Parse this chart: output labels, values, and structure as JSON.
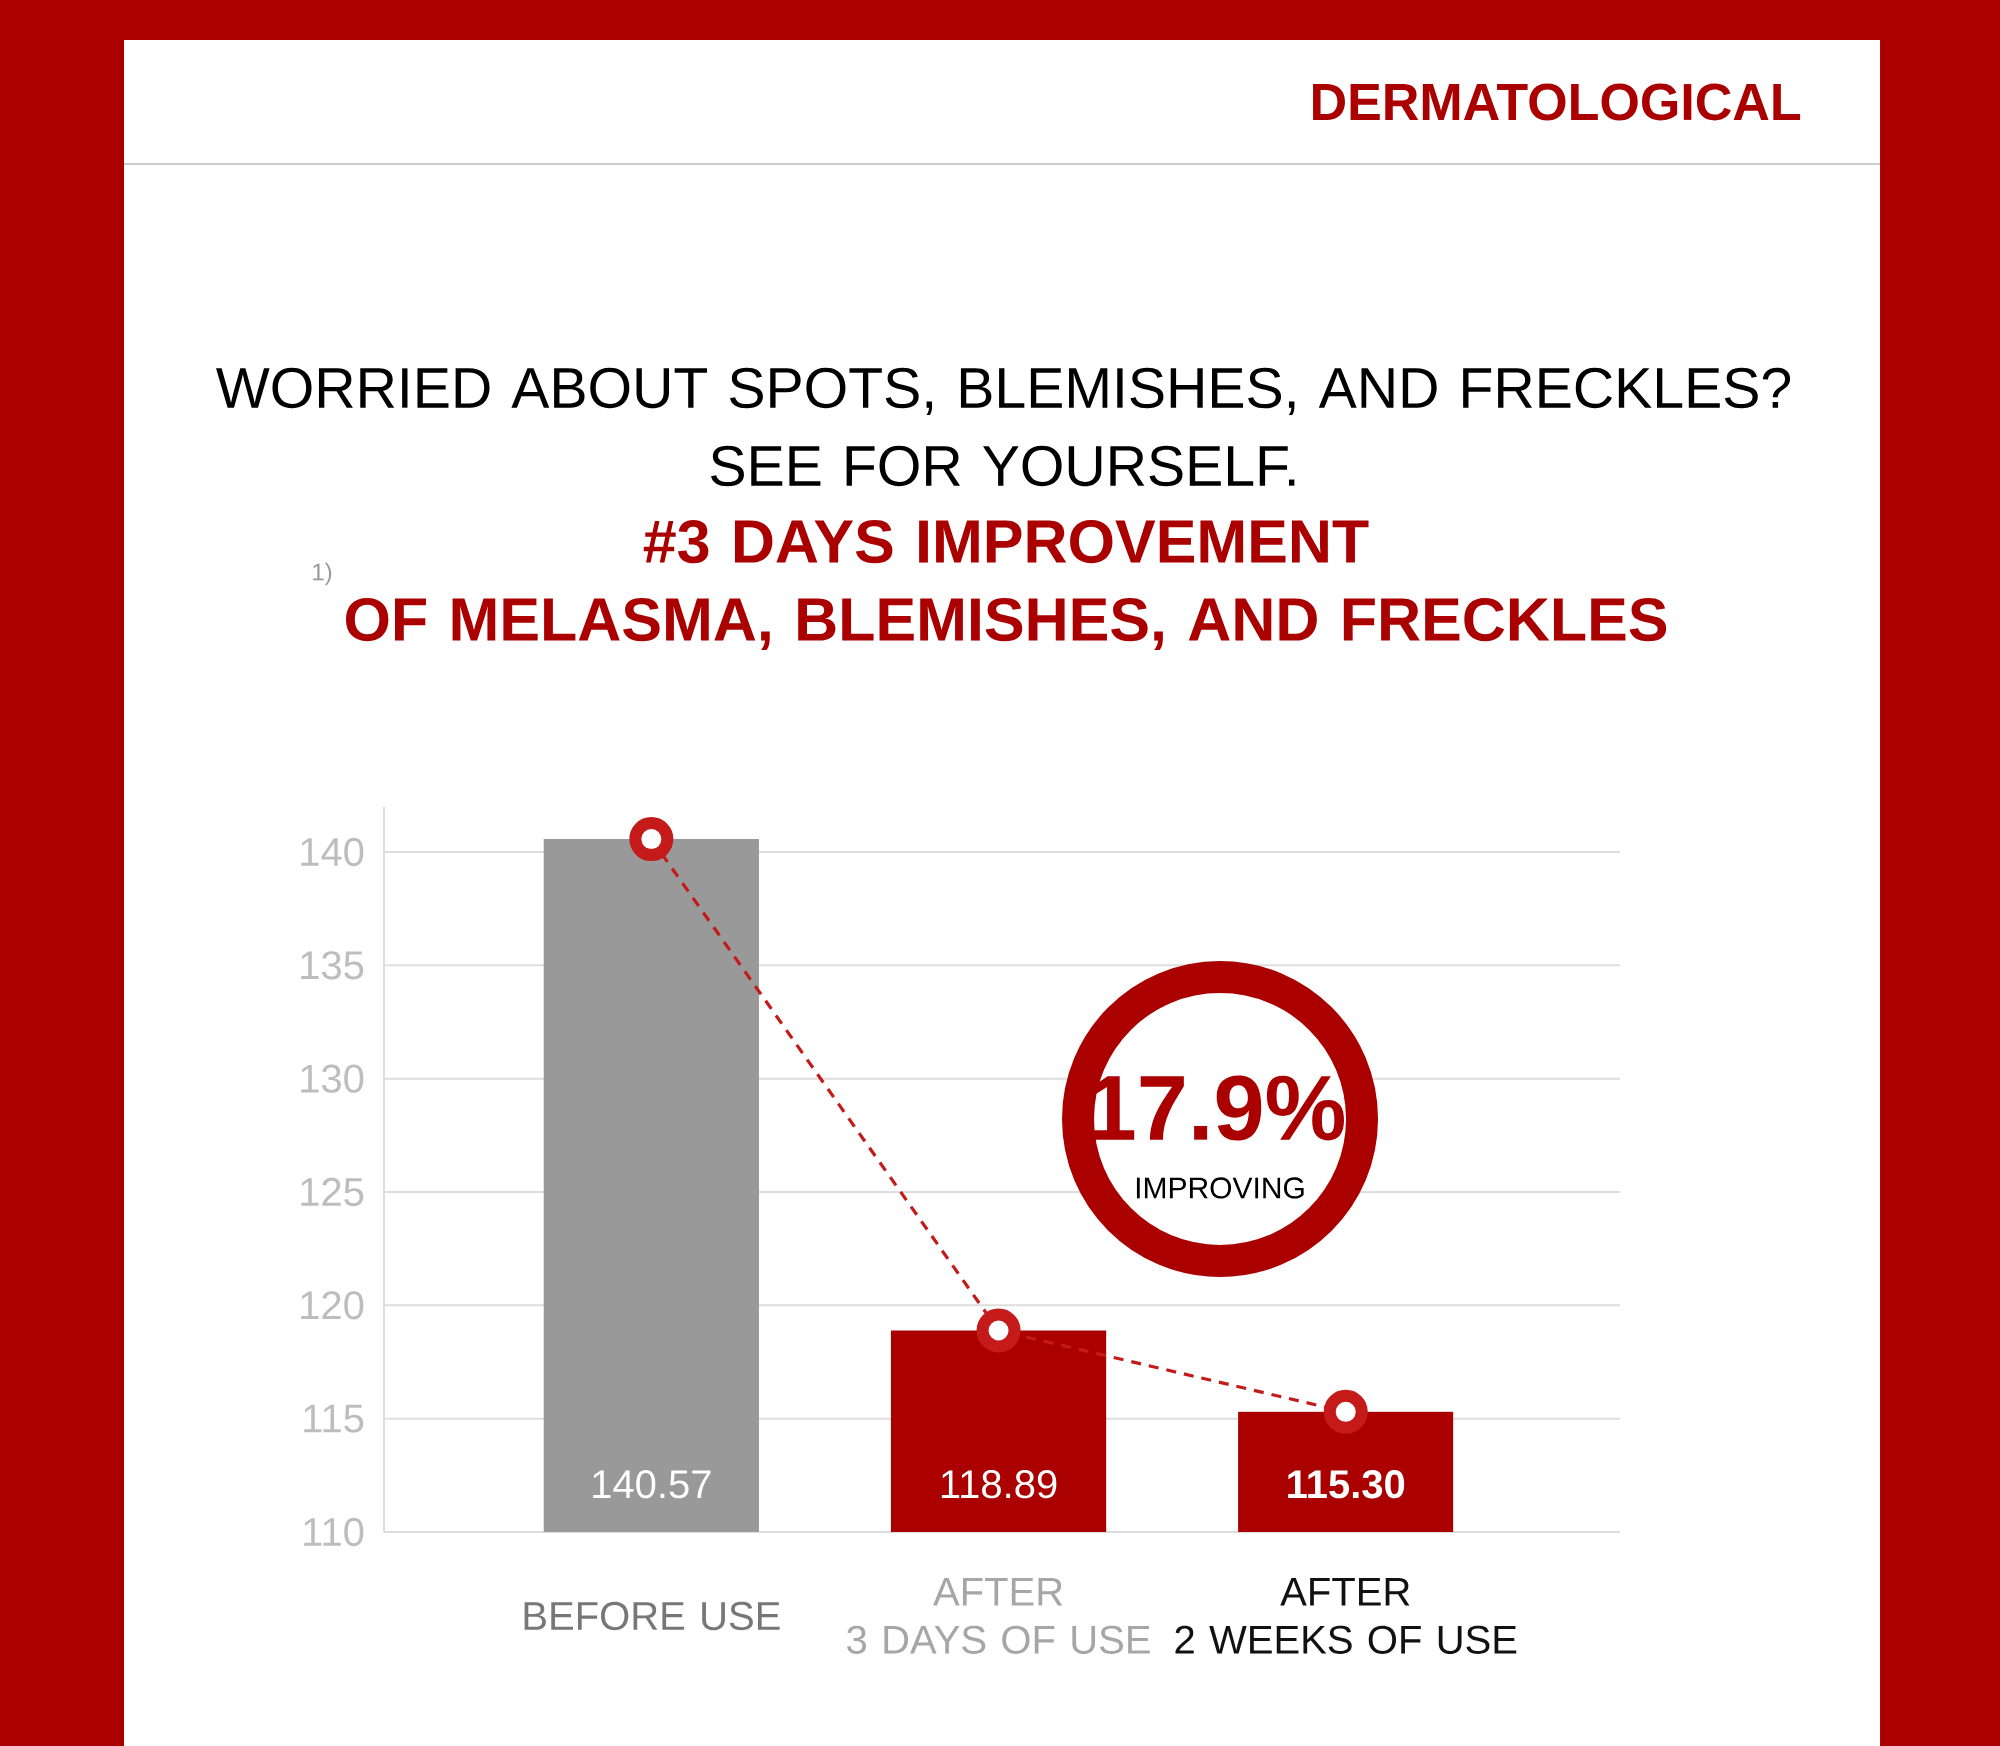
{
  "chart_data": {
    "type": "bar",
    "title": "WORRIED ABOUT SPOTS, BLEMISHES, AND FRECKLES?\nSEE FOR YOURSELF.",
    "subtitle": "#3 DAYS IMPROVEMENT\nOF MELASMA, BLEMISHES, AND FRECKLES",
    "categories": [
      "BEFORE USE",
      "AFTER\n3 DAYS OF USE",
      "AFTER\n2 WEEKS OF USE"
    ],
    "series": [
      {
        "colors": [
          "#999999",
          "#aa0000",
          "#aa0000"
        ],
        "values": [
          140.57,
          118.89,
          115.3
        ],
        "value_labels": [
          "140.57",
          "118.89",
          "115.30"
        ]
      },
      {
        "type": "line",
        "color": "#c41a1a",
        "values": [
          140.57,
          118.89,
          115.3
        ],
        "marker": "circle",
        "line_style": "dashed"
      }
    ],
    "ylim": [
      110,
      142
    ],
    "yticks": [
      110,
      115,
      120,
      125,
      130,
      135,
      140
    ],
    "grid": "y",
    "annotations": [
      "DERMATOLOGICAL",
      "1)",
      "17.9%",
      "IMPROVING"
    ]
  }
}
